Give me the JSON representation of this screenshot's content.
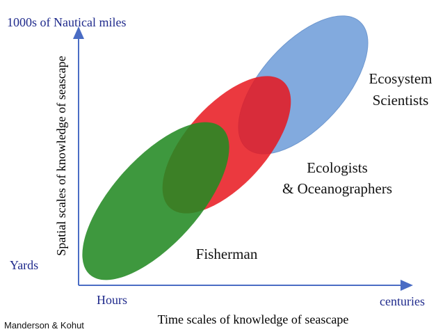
{
  "axes": {
    "y_top": "1000s of Nautical miles",
    "y_bottom": "Yards",
    "y_title": "Spatial scales of knowledge of seascape",
    "x_left": "Hours",
    "x_right": "centuries",
    "x_title": "Time scales of knowledge of seascape"
  },
  "credit": "Manderson & Kohut",
  "groups": [
    {
      "lines": [
        "Ecosystem",
        "Scientists"
      ]
    },
    {
      "lines": [
        "Ecologists",
        "& Oceanographers"
      ]
    },
    {
      "lines": [
        "Fisherman"
      ]
    }
  ]
}
